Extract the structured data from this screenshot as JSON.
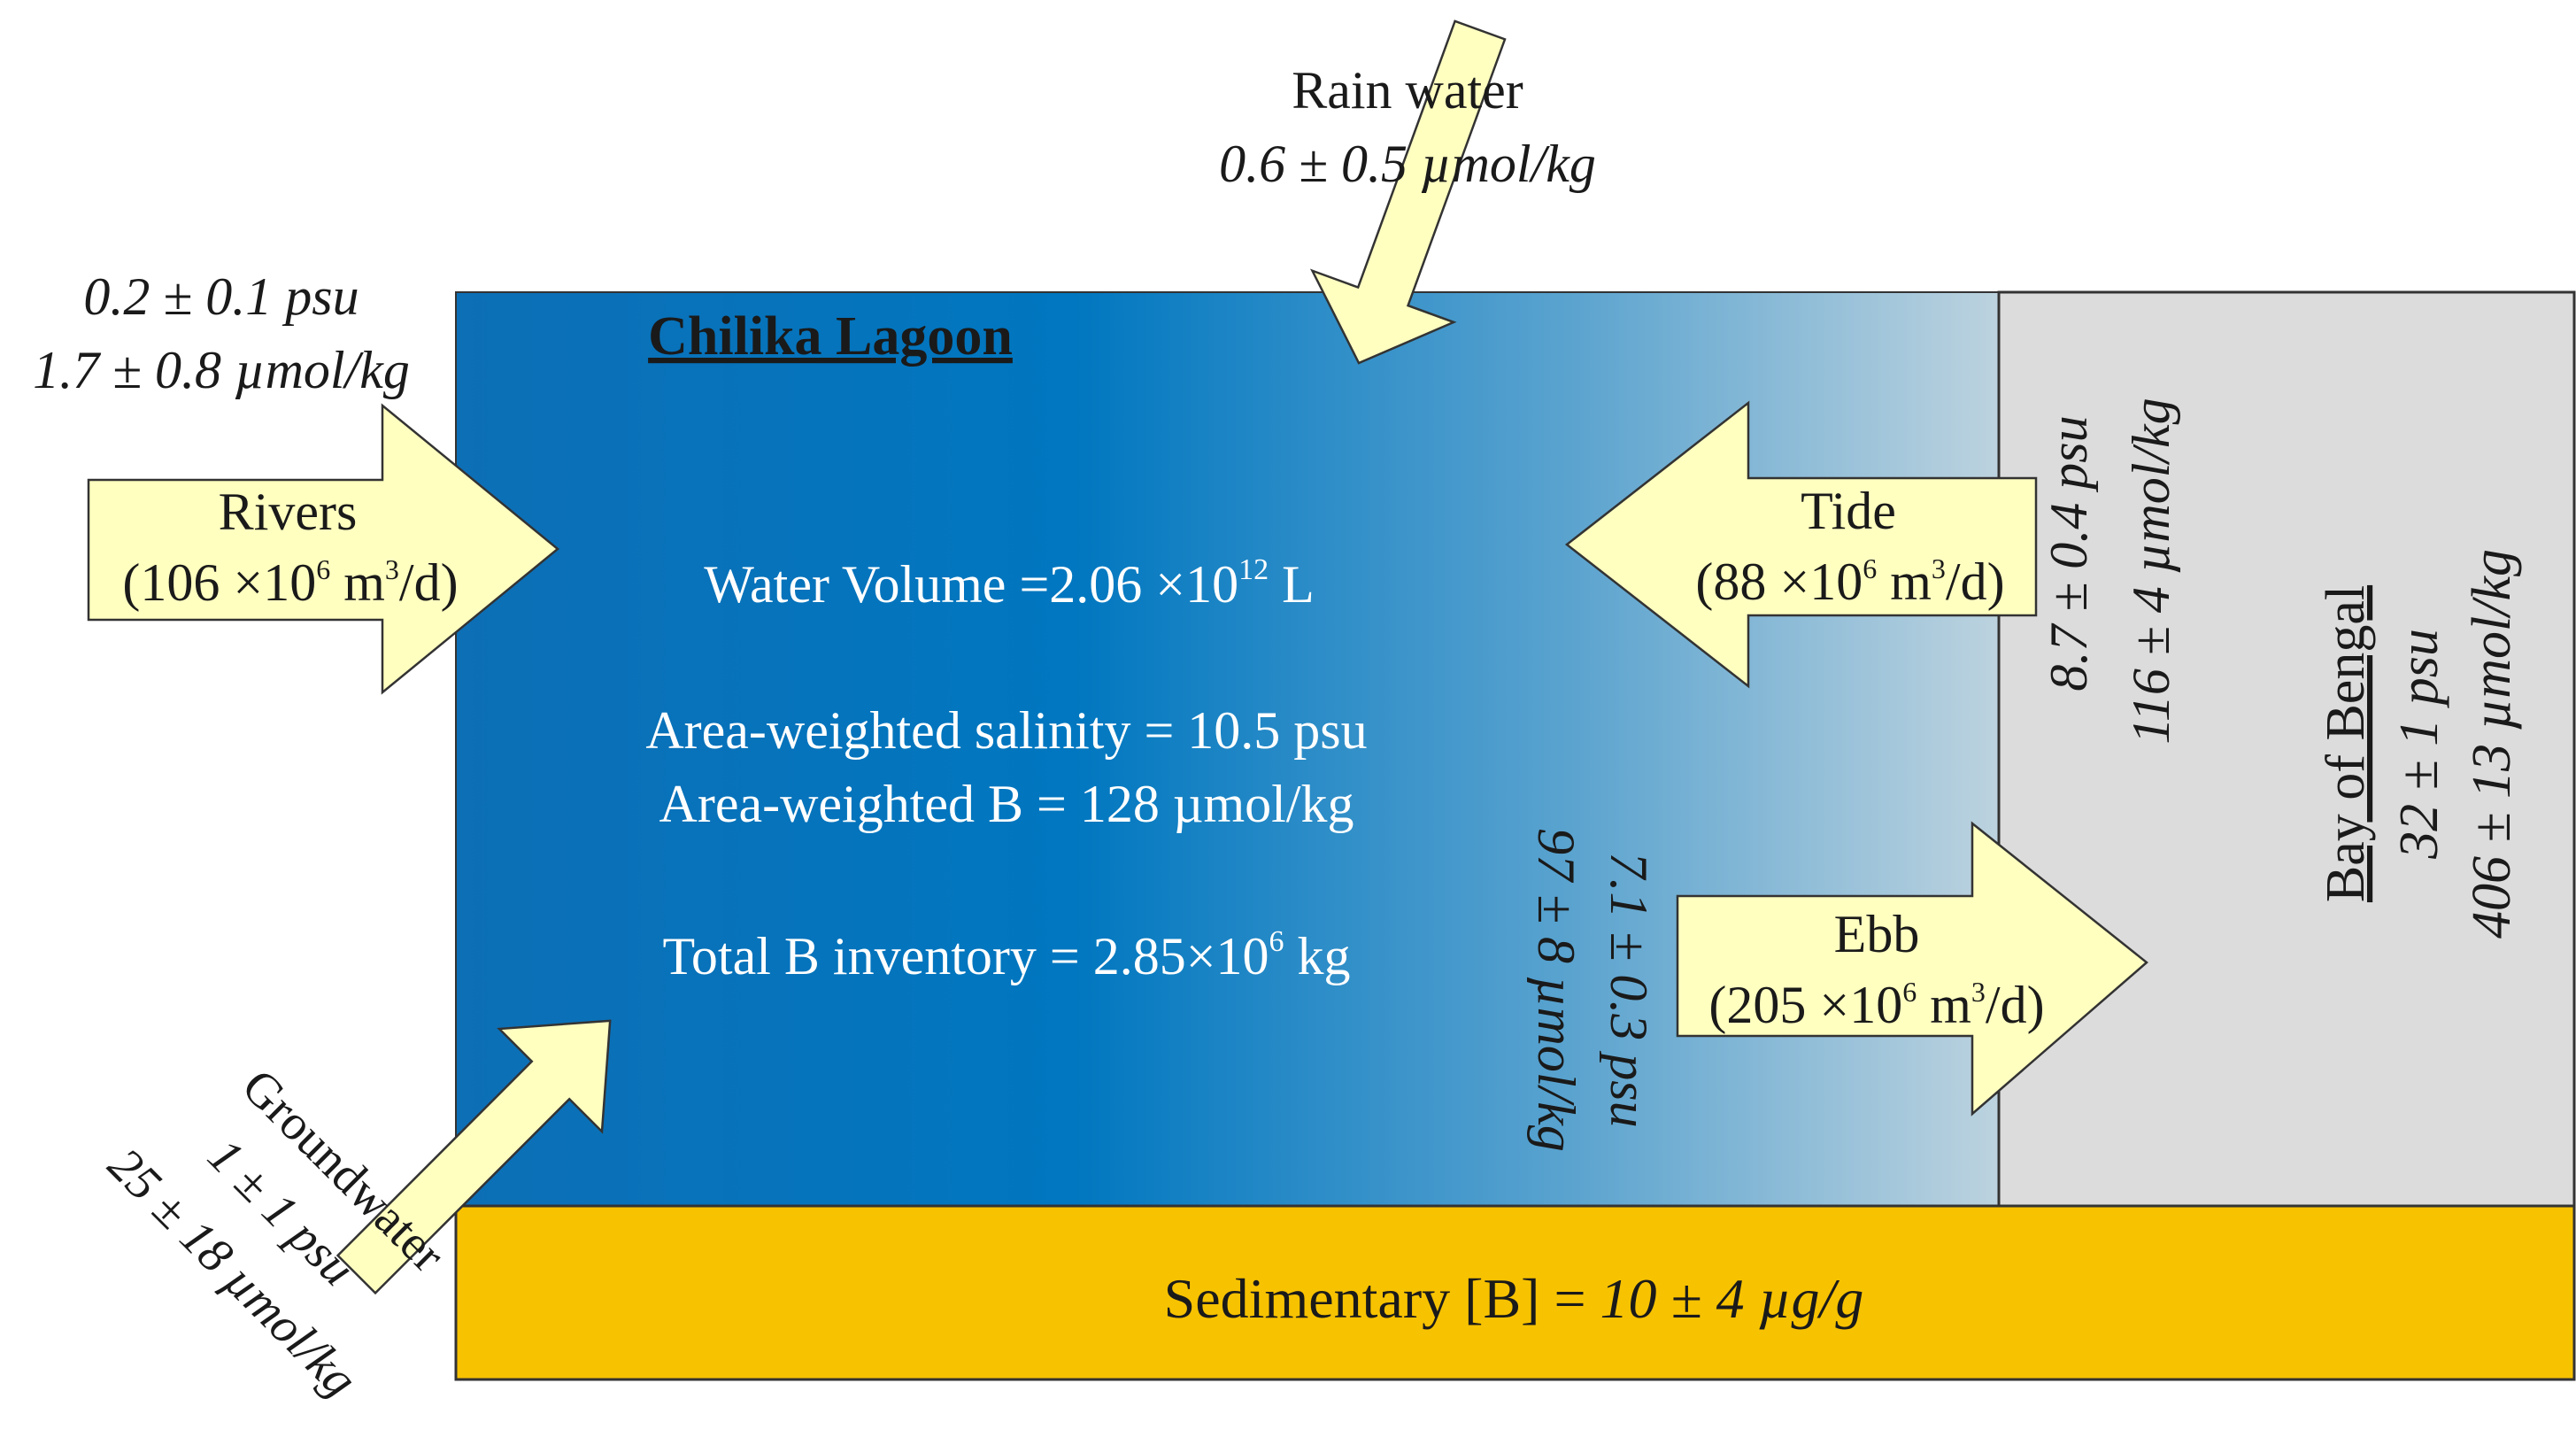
{
  "lagoon": {
    "title": "Chilika Lagoon",
    "volume_prefix": "Water Volume =2.06 ×10",
    "volume_exp": "12",
    "volume_unit": " L",
    "salinity": "Area-weighted salinity = 10.5 psu",
    "boron": "Area-weighted B  = 128 µmol/kg",
    "inventory_prefix": "Total B inventory = 2.85×10",
    "inventory_exp": "6",
    "inventory_unit": " kg"
  },
  "rain": {
    "label": "Rain water",
    "value": "0.6 ± 0.5 µmol/kg"
  },
  "rivers": {
    "label": "Rivers",
    "flow_prefix": "(106 ×10",
    "flow_exp": "6",
    "flow_mid": " m",
    "flow_exp2": "3",
    "flow_suffix": "/d)",
    "salinity": "0.2 ± 0.1 psu",
    "boron": "1.7 ± 0.8 µmol/kg"
  },
  "tide": {
    "label": "Tide",
    "flow_prefix": "(88 ×10",
    "flow_exp": "6",
    "flow_mid": " m",
    "flow_exp2": "3",
    "flow_suffix": "/d)",
    "salinity": "8.7 ± 0.4 psu",
    "boron": "116 ± 4 µmol/kg"
  },
  "ebb": {
    "label": "Ebb",
    "flow_prefix": "(205 ×10",
    "flow_exp": "6",
    "flow_mid": " m",
    "flow_exp2": "3",
    "flow_suffix": "/d)",
    "salinity": "7.1 ± 0.3 psu",
    "boron": "97 ± 8 µmol/kg"
  },
  "bay": {
    "title": "Bay of Bengal",
    "salinity": "32 ± 1 psu",
    "boron": "406 ± 13 µmol/kg"
  },
  "groundwater": {
    "label": "Groundwater",
    "salinity": "1 ± 1 psu",
    "boron": "25 ± 18 µmol/kg"
  },
  "sediment": {
    "prefix": "Sedimentary [B] = ",
    "value": "10 ± 4 µg/g"
  },
  "colors": {
    "lagoon_deep": "#0071bb",
    "lagoon_light": "#b9d2df",
    "arrow_fill": "#ffffc0",
    "bay_fill": "#dcdcdc",
    "sediment_fill": "#f7c200"
  }
}
